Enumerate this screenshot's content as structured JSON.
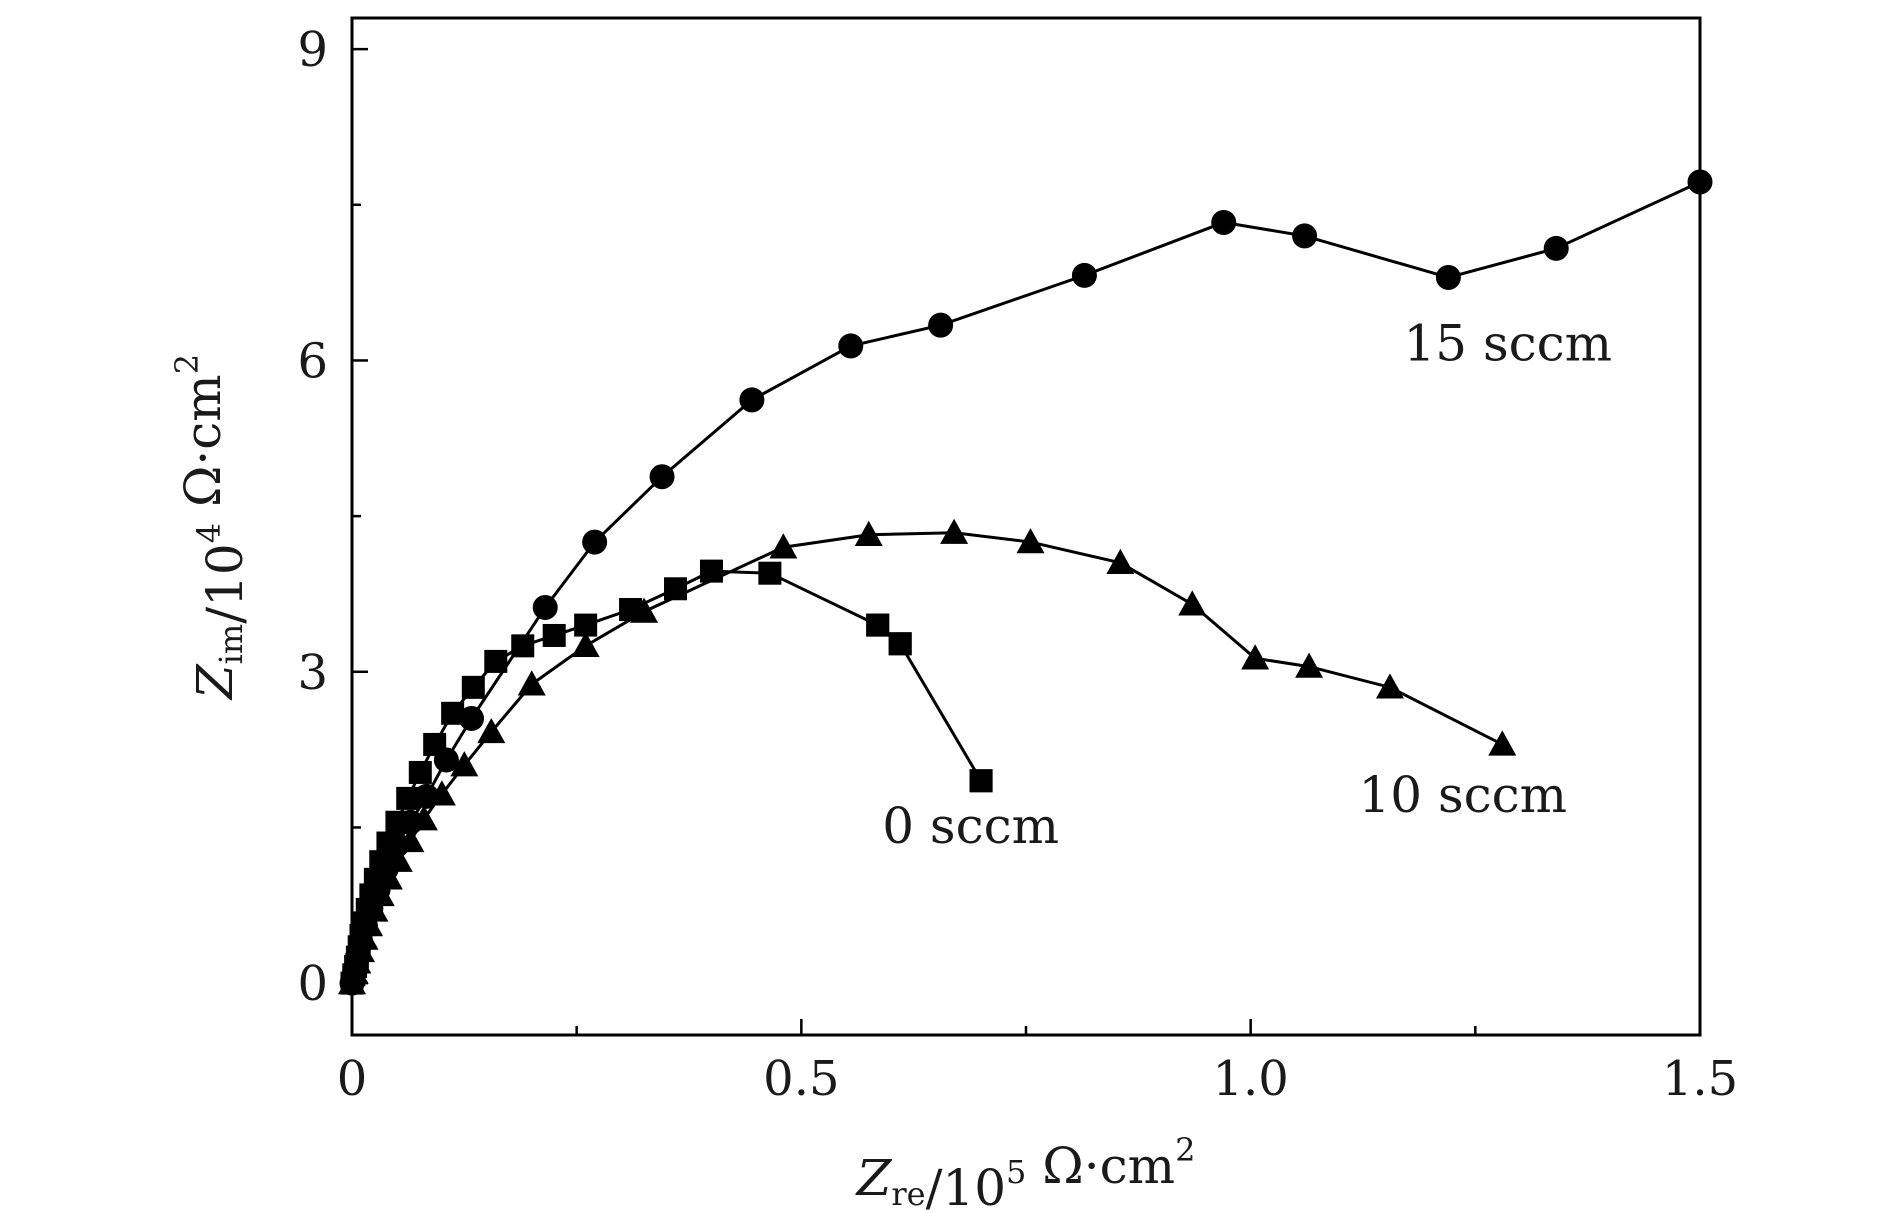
{
  "chart_data": {
    "type": "scatter",
    "xlabel": {
      "main": "Z",
      "sub": "re",
      "rest": "/10",
      "sup": "5",
      "unit": " Ω·cm",
      "unit_sup": "2"
    },
    "ylabel": {
      "main": "Z",
      "sub": "im",
      "rest": "/10",
      "sup": "4",
      "unit": " Ω·cm",
      "unit_sup": "2"
    },
    "xlim": [
      0,
      1.5
    ],
    "ylim": [
      -0.5,
      9.3
    ],
    "x_ticks": [
      0,
      0.5,
      1.0,
      1.5
    ],
    "x_tick_labels": [
      "0",
      "0.5",
      "1.0",
      "1.5"
    ],
    "x_minor_ticks": [
      0.25,
      0.75,
      1.25
    ],
    "y_ticks": [
      0,
      3,
      6,
      9
    ],
    "y_tick_labels": [
      "0",
      "3",
      "6",
      "9"
    ],
    "y_minor_ticks": [
      1.5,
      4.5,
      7.5
    ],
    "grid": false,
    "series": [
      {
        "name": "0 sccm",
        "marker": "square",
        "x": [
          0.0,
          0.002,
          0.004,
          0.006,
          0.008,
          0.01,
          0.013,
          0.017,
          0.021,
          0.026,
          0.032,
          0.04,
          0.05,
          0.062,
          0.076,
          0.092,
          0.112,
          0.135,
          0.16,
          0.19,
          0.225,
          0.26,
          0.31,
          0.36,
          0.4,
          0.465,
          0.585,
          0.61,
          0.7,
          0.7,
          0.61,
          0.585
        ],
        "y": [
          0.0,
          0.08,
          0.16,
          0.25,
          0.35,
          0.46,
          0.58,
          0.71,
          0.85,
          1.0,
          1.17,
          1.35,
          1.55,
          1.78,
          2.03,
          2.3,
          2.6,
          2.85,
          3.1,
          3.25,
          3.35,
          3.45,
          3.6,
          3.8,
          3.97,
          3.95,
          3.45,
          3.27,
          1.95,
          1.95,
          3.27,
          3.45
        ]
      },
      {
        "name": "10 sccm",
        "marker": "triangle",
        "x": [
          0.0,
          0.003,
          0.006,
          0.01,
          0.014,
          0.019,
          0.025,
          0.032,
          0.041,
          0.052,
          0.065,
          0.08,
          0.1,
          0.125,
          0.155,
          0.2,
          0.26,
          0.325,
          0.48,
          0.575,
          0.67,
          0.755,
          0.855,
          0.935,
          1.005,
          1.065,
          1.155,
          1.28
        ],
        "y": [
          0.0,
          0.1,
          0.2,
          0.31,
          0.43,
          0.56,
          0.7,
          0.85,
          1.01,
          1.18,
          1.37,
          1.58,
          1.82,
          2.1,
          2.42,
          2.88,
          3.25,
          3.58,
          4.2,
          4.32,
          4.34,
          4.25,
          4.05,
          3.65,
          3.13,
          3.05,
          2.85,
          2.3
        ]
      },
      {
        "name": "15 sccm",
        "marker": "circle",
        "x": [
          0.0,
          0.003,
          0.006,
          0.01,
          0.015,
          0.021,
          0.029,
          0.038,
          0.05,
          0.065,
          0.083,
          0.105,
          0.133,
          0.215,
          0.27,
          0.345,
          0.445,
          0.555,
          0.655,
          0.815,
          0.97,
          1.06,
          1.22,
          1.34,
          1.5
        ],
        "y": [
          0.0,
          0.12,
          0.25,
          0.39,
          0.55,
          0.72,
          0.9,
          1.1,
          1.33,
          1.55,
          1.8,
          2.15,
          2.55,
          3.62,
          4.25,
          4.88,
          5.62,
          6.14,
          6.34,
          6.82,
          7.33,
          7.2,
          6.8,
          7.08,
          7.72
        ]
      }
    ],
    "annotations": [
      {
        "text": "0 sccm",
        "x": 0.59,
        "y": 1.35
      },
      {
        "text": "10 sccm",
        "x": 1.12,
        "y": 1.65
      },
      {
        "text": "15 sccm",
        "x": 1.17,
        "y": 6.0
      }
    ]
  }
}
